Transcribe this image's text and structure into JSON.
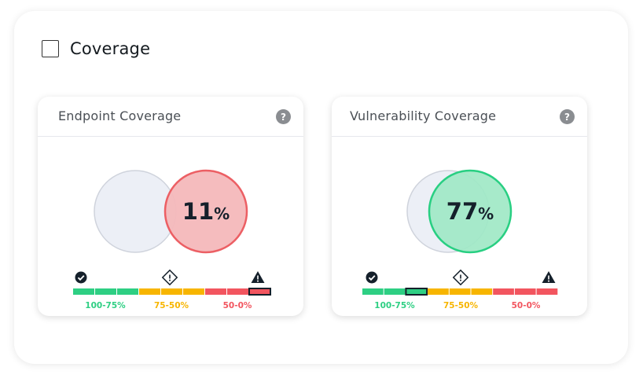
{
  "section": {
    "title": "Coverage",
    "checked": false
  },
  "cards": [
    {
      "title": "Endpoint Coverage",
      "value": "11",
      "unit": "%",
      "status": "low",
      "active_segment": 8,
      "value_fraction": 0.11
    },
    {
      "title": "Vulnerability Coverage",
      "value": "77",
      "unit": "%",
      "status": "high",
      "active_segment": 2,
      "value_fraction": 0.77
    }
  ],
  "scale": {
    "ranges": [
      {
        "label": "100-75%",
        "color": "#2ecf83",
        "icon": "check-circle-icon"
      },
      {
        "label": "75-50%",
        "color": "#f7b500",
        "icon": "warning-diamond-icon"
      },
      {
        "label": "50-0%",
        "color": "#f2555f",
        "icon": "alert-triangle-icon"
      }
    ],
    "segments_per_range": 3
  },
  "help_label": "?",
  "colors": {
    "baseline_fill": "#eceff6",
    "baseline_stroke": "#cfd3dc",
    "low_fill": "#f4b8ba",
    "low_stroke": "#ec5f64",
    "high_fill": "#9fe8c6",
    "high_stroke": "#28cf82",
    "value_text": "#15202b"
  }
}
